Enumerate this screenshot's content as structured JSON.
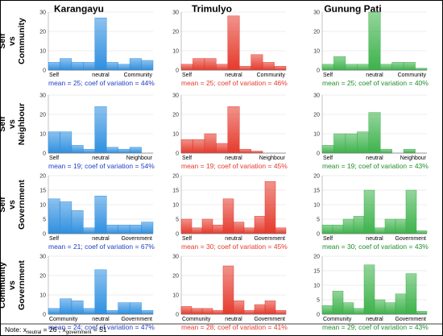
{
  "columns": [
    "Karangayu",
    "Trimulyo",
    "Gunung Pati"
  ],
  "colors": {
    "Karangayu": "#2e8fe0",
    "Trimulyo": "#e53a2c",
    "Gunung Pati": "#3cb24a"
  },
  "stat_colors": {
    "Karangayu": "#1f3fc4",
    "Trimulyo": "#e53a2c",
    "Gunung Pati": "#1f8f2a"
  },
  "rows": [
    {
      "label": [
        "Self",
        "vs",
        "Community"
      ],
      "left": "Self",
      "mid": "neutral",
      "right": "Community"
    },
    {
      "label": [
        "Self",
        "vs",
        "Neighbour"
      ],
      "left": "Self",
      "mid": "neutral",
      "right": "Neighbour"
    },
    {
      "label": [
        "Self",
        "vs",
        "Government"
      ],
      "left": "Self",
      "mid": "neutral",
      "right": "Government"
    },
    {
      "label": [
        "Community",
        "vs",
        "Government"
      ],
      "left": "Community",
      "mid": "neutral",
      "right": "Government"
    }
  ],
  "note": {
    "prefix": "Note:",
    "x_neutral_symbol": "x",
    "x_neutral_sub": "neutral",
    "x_neutral_value": " = 26 ; ",
    "x_government_symbol": "x",
    "x_government_sub": "government",
    "x_government_value": " = 51"
  },
  "chart_data": [
    {
      "type": "bar",
      "row": "Self vs Community",
      "column": "Karangayu",
      "ylim": [
        0,
        30
      ],
      "yticks": [
        0,
        10,
        20,
        30
      ],
      "values": [
        4,
        6,
        4,
        4,
        27,
        4,
        3,
        6,
        5
      ],
      "stat": "mean = 25; coef of variation = 44%"
    },
    {
      "type": "bar",
      "row": "Self vs Community",
      "column": "Trimulyo",
      "ylim": [
        0,
        30
      ],
      "yticks": [
        0,
        10,
        20,
        30
      ],
      "values": [
        3,
        6,
        6,
        3,
        28,
        2,
        8,
        4,
        2
      ],
      "stat": "mean = 25; coef of variation = 46%"
    },
    {
      "type": "bar",
      "row": "Self vs Community",
      "column": "Gunung Pati",
      "ylim": [
        0,
        30
      ],
      "yticks": [
        0,
        10,
        20,
        30
      ],
      "values": [
        3,
        7,
        3,
        3,
        30,
        3,
        4,
        4,
        1
      ],
      "stat": "mean = 25; coef of variation = 40%"
    },
    {
      "type": "bar",
      "row": "Self vs Neighbour",
      "column": "Karangayu",
      "ylim": [
        0,
        30
      ],
      "yticks": [
        0,
        10,
        20,
        30
      ],
      "values": [
        11,
        11,
        4,
        2,
        24,
        3,
        2,
        3,
        0
      ],
      "stat": "mean = 19; coef of variation = 54%"
    },
    {
      "type": "bar",
      "row": "Self vs Neighbour",
      "column": "Trimulyo",
      "ylim": [
        0,
        30
      ],
      "yticks": [
        0,
        10,
        20,
        30
      ],
      "values": [
        7,
        7,
        10,
        5,
        24,
        2,
        1,
        0,
        0
      ],
      "stat": "mean = 19; coef of variation = 45%"
    },
    {
      "type": "bar",
      "row": "Self vs Neighbour",
      "column": "Gunung Pati",
      "ylim": [
        0,
        30
      ],
      "yticks": [
        0,
        10,
        20,
        30
      ],
      "values": [
        4,
        10,
        10,
        11,
        21,
        2,
        0,
        2,
        0
      ],
      "stat": "mean = 19; coef of variation = 43%"
    },
    {
      "type": "bar",
      "row": "Self vs Government",
      "column": "Karangayu",
      "ylim": [
        0,
        20
      ],
      "yticks": [
        0,
        5,
        10,
        15,
        20
      ],
      "values": [
        12,
        11,
        8,
        2,
        13,
        3,
        3,
        3,
        4
      ],
      "stat": "mean = 21; coef of variation = 67%"
    },
    {
      "type": "bar",
      "row": "Self vs Government",
      "column": "Trimulyo",
      "ylim": [
        0,
        20
      ],
      "yticks": [
        0,
        5,
        10,
        15,
        20
      ],
      "values": [
        5,
        2,
        5,
        3,
        12,
        4,
        2,
        6,
        18,
        2
      ],
      "stat": "mean = 30; coef of variation = 45%"
    },
    {
      "type": "bar",
      "row": "Self vs Government",
      "column": "Gunung Pati",
      "ylim": [
        0,
        20
      ],
      "yticks": [
        0,
        5,
        10,
        15,
        20
      ],
      "values": [
        3,
        3,
        5,
        6,
        15,
        2,
        5,
        5,
        15,
        1
      ],
      "stat": "mean = 30; coef of variation = 43%"
    },
    {
      "type": "bar",
      "row": "Community vs Government",
      "column": "Karangayu",
      "ylim": [
        0,
        30
      ],
      "yticks": [
        0,
        10,
        20,
        30
      ],
      "values": [
        3,
        8,
        7,
        3,
        23,
        2,
        6,
        6,
        2
      ],
      "stat": "mean = 24; coef of variation = 47%"
    },
    {
      "type": "bar",
      "row": "Community vs Government",
      "column": "Trimulyo",
      "ylim": [
        0,
        30
      ],
      "yticks": [
        0,
        10,
        20,
        30
      ],
      "values": [
        4,
        3,
        3,
        2,
        25,
        7,
        2,
        5,
        7,
        2
      ],
      "stat": "mean = 28; coef of variation = 41%"
    },
    {
      "type": "bar",
      "row": "Community vs Government",
      "column": "Gunung Pati",
      "ylim": [
        0,
        20
      ],
      "yticks": [
        0,
        5,
        10,
        15,
        20
      ],
      "values": [
        3,
        8,
        4,
        2,
        17,
        5,
        4,
        7,
        14,
        1
      ],
      "stat": "mean = 29; coef of variation = 43%"
    }
  ]
}
